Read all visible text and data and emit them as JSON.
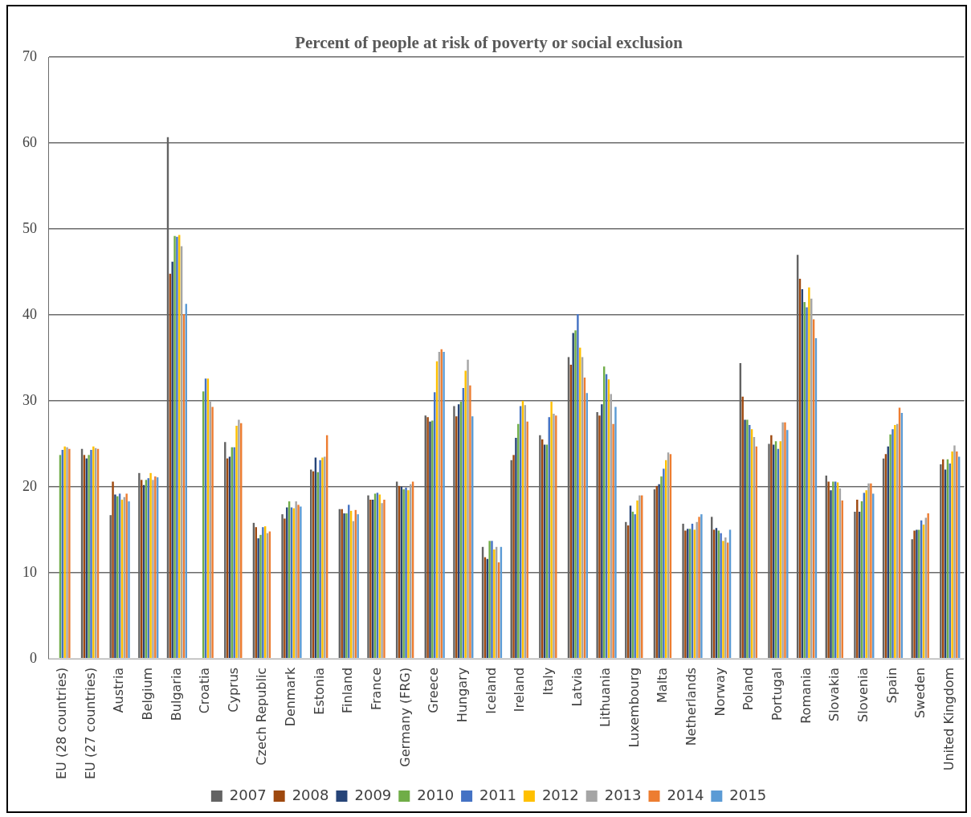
{
  "chart_data": {
    "type": "bar",
    "title": "Percent of people at risk of poverty or social exclusion",
    "categories": [
      "EU (28 countries)",
      "EU (27 countries)",
      "Austria",
      "Belgium",
      "Bulgaria",
      "Croatia",
      "Cyprus",
      "Czech Republic",
      "Denmark",
      "Estonia",
      "Finland",
      "France",
      "Germany (FRG)",
      "Greece",
      "Hungary",
      "Iceland",
      "Ireland",
      "Italy",
      "Latvia",
      "Lithuania",
      "Luxembourg",
      "Malta",
      "Netherlands",
      "Norway",
      "Poland",
      "Portugal",
      "Romania",
      "Slovakia",
      "Slovenia",
      "Spain",
      "Sweden",
      "United Kingdom"
    ],
    "series": [
      {
        "name": "2007",
        "color": "#636363",
        "values": [
          null,
          24.4,
          16.7,
          21.6,
          60.7,
          null,
          25.2,
          15.8,
          16.8,
          22.0,
          17.4,
          19.0,
          20.6,
          28.3,
          29.4,
          13.0,
          23.1,
          26.0,
          35.1,
          28.7,
          15.9,
          19.7,
          15.7,
          16.5,
          34.4,
          25.0,
          47.0,
          21.3,
          17.1,
          23.3,
          13.9,
          22.6
        ]
      },
      {
        "name": "2008",
        "color": "#9e480e",
        "values": [
          null,
          23.7,
          20.6,
          20.8,
          44.8,
          null,
          23.3,
          15.3,
          16.3,
          21.8,
          17.4,
          18.5,
          20.1,
          28.1,
          28.2,
          11.8,
          23.7,
          25.5,
          34.2,
          28.3,
          15.5,
          20.1,
          14.9,
          15.0,
          30.5,
          26.0,
          44.2,
          20.6,
          18.5,
          23.8,
          14.9,
          23.2
        ]
      },
      {
        "name": "2009",
        "color": "#264478",
        "values": [
          null,
          23.3,
          19.1,
          20.2,
          46.2,
          null,
          23.5,
          14.0,
          17.6,
          23.4,
          16.9,
          18.5,
          20.0,
          27.6,
          29.6,
          11.6,
          25.7,
          24.9,
          37.9,
          29.6,
          17.8,
          20.3,
          15.1,
          15.2,
          27.8,
          24.9,
          43.0,
          19.6,
          17.1,
          24.7,
          15.0,
          22.0
        ]
      },
      {
        "name": "2010",
        "color": "#70ad47",
        "values": [
          23.7,
          23.7,
          18.9,
          20.8,
          49.2,
          31.1,
          24.6,
          14.4,
          18.3,
          21.7,
          16.9,
          19.2,
          19.7,
          27.7,
          29.9,
          13.7,
          27.3,
          24.9,
          38.2,
          34.0,
          17.1,
          21.2,
          15.1,
          14.9,
          27.8,
          25.3,
          41.5,
          20.6,
          18.3,
          26.1,
          15.0,
          23.2
        ]
      },
      {
        "name": "2011",
        "color": "#4472c4",
        "values": [
          24.3,
          24.3,
          19.2,
          21.0,
          49.1,
          32.6,
          24.6,
          15.3,
          17.6,
          23.1,
          17.9,
          19.3,
          19.9,
          31.0,
          31.5,
          13.7,
          29.4,
          28.1,
          40.1,
          33.1,
          16.8,
          22.1,
          15.7,
          14.6,
          27.2,
          24.4,
          40.9,
          20.6,
          19.3,
          26.7,
          16.1,
          22.7
        ]
      },
      {
        "name": "2012",
        "color": "#ffc000",
        "values": [
          24.7,
          24.7,
          18.5,
          21.6,
          49.3,
          32.6,
          27.1,
          15.4,
          17.5,
          23.4,
          17.2,
          19.1,
          19.6,
          34.6,
          33.5,
          12.7,
          30.0,
          29.9,
          36.2,
          32.5,
          18.4,
          23.1,
          15.0,
          13.7,
          26.7,
          25.3,
          43.2,
          20.5,
          19.6,
          27.2,
          15.6,
          24.1
        ]
      },
      {
        "name": "2013",
        "color": "#a5a5a5",
        "values": [
          24.6,
          24.5,
          18.8,
          20.8,
          48.0,
          29.9,
          27.8,
          14.6,
          18.3,
          23.5,
          16.0,
          18.1,
          20.3,
          35.7,
          34.8,
          13.0,
          29.5,
          28.5,
          35.1,
          30.8,
          19.0,
          24.0,
          15.9,
          14.1,
          25.8,
          27.5,
          41.9,
          19.8,
          20.4,
          27.3,
          16.4,
          24.8
        ]
      },
      {
        "name": "2014",
        "color": "#ed7d31",
        "values": [
          24.4,
          24.4,
          19.2,
          21.2,
          40.1,
          29.3,
          27.4,
          14.8,
          17.9,
          26.0,
          17.3,
          18.5,
          20.6,
          36.0,
          31.8,
          11.2,
          27.6,
          28.3,
          32.7,
          27.3,
          19.0,
          23.8,
          16.5,
          13.5,
          24.7,
          27.5,
          39.5,
          18.4,
          20.4,
          29.2,
          16.9,
          24.1
        ]
      },
      {
        "name": "2015",
        "color": "#5b9bd5",
        "values": [
          null,
          null,
          18.3,
          21.1,
          41.3,
          null,
          null,
          null,
          17.7,
          null,
          16.8,
          null,
          null,
          35.7,
          28.2,
          13.0,
          null,
          null,
          30.9,
          29.3,
          null,
          null,
          16.8,
          15.0,
          null,
          26.6,
          37.3,
          null,
          19.2,
          28.6,
          null,
          23.5
        ]
      }
    ],
    "ylim": [
      0,
      70
    ],
    "yticks": [
      0,
      10,
      20,
      30,
      40,
      50,
      60,
      70
    ],
    "grid": "y",
    "legend": "bottom"
  }
}
